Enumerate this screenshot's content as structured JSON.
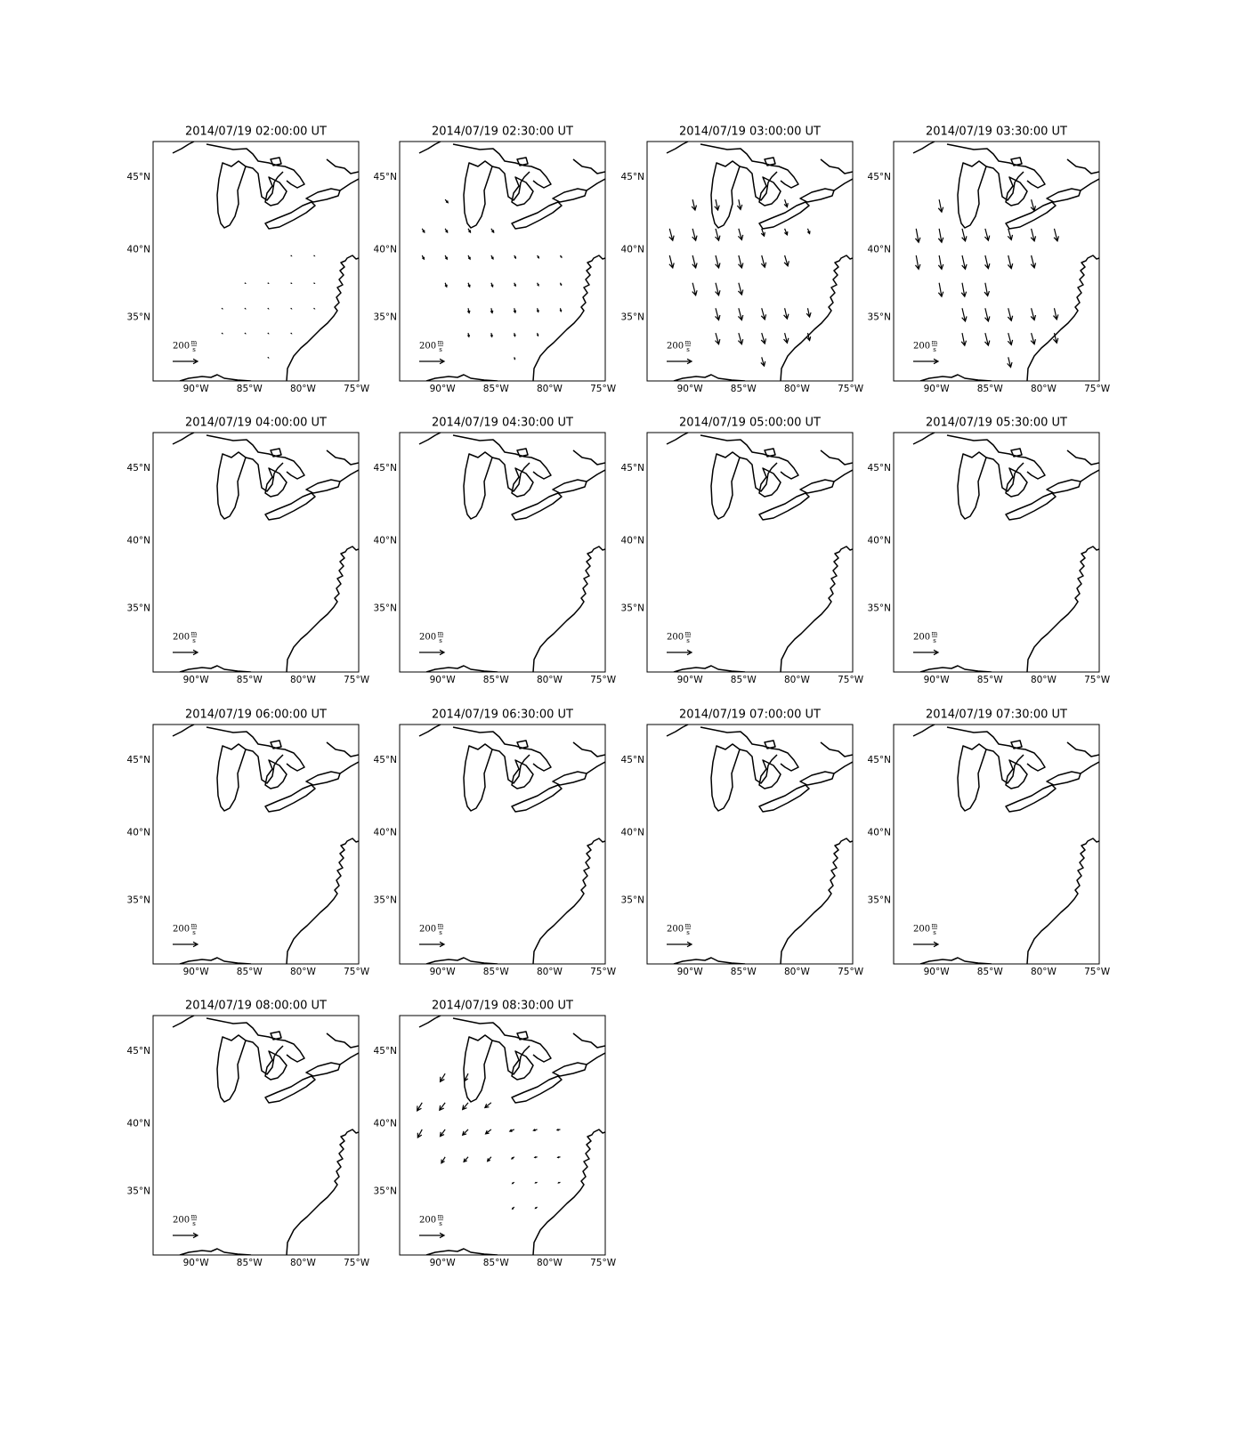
{
  "chart_data": [
    {
      "type": "quiver",
      "title": "2014/07/19 02:00:00 UT",
      "xlim": [
        -94,
        -74.8
      ],
      "ylim": [
        30,
        47.3
      ],
      "xticks": [
        {
          "value": -90,
          "label": "90°W"
        },
        {
          "value": -85,
          "label": "85°W"
        },
        {
          "value": -80,
          "label": "80°W"
        },
        {
          "value": -75,
          "label": "75°W"
        }
      ],
      "yticks": [
        {
          "value": 35,
          "label": "35°N"
        },
        {
          "value": 40,
          "label": "40°N"
        },
        {
          "value": 45,
          "label": "45°N"
        }
      ],
      "key": {
        "value": 200,
        "numerator": "m",
        "denominator": "s"
      },
      "x": [
        -81.15,
        -79.0,
        -85.45,
        -83.3,
        -81.15,
        -79.0,
        -87.6,
        -85.45,
        -83.3,
        -81.15,
        -79.0,
        -87.6,
        -85.45,
        -83.3,
        -81.15,
        -83.3
      ],
      "y": [
        39.6,
        39.6,
        37.6,
        37.6,
        37.6,
        37.6,
        35.7,
        35.7,
        35.7,
        35.7,
        35.7,
        33.8,
        33.8,
        33.8,
        33.8,
        31.9
      ],
      "u": [
        6,
        6,
        6,
        6,
        6,
        6,
        6,
        6,
        6,
        6,
        6,
        6,
        6,
        6,
        6,
        6
      ],
      "v": [
        -4,
        -4,
        -4,
        -4,
        -4,
        -4,
        -4,
        -4,
        -4,
        -4,
        -4,
        -4,
        -4,
        -4,
        -4,
        -4
      ]
    },
    {
      "type": "quiver",
      "title": "2014/07/19 02:30:00 UT",
      "xlim": [
        -94,
        -74.8
      ],
      "ylim": [
        30,
        47.3
      ],
      "xticks": [
        {
          "value": -90,
          "label": "90°W"
        },
        {
          "value": -85,
          "label": "85°W"
        },
        {
          "value": -80,
          "label": "80°W"
        },
        {
          "value": -75,
          "label": "75°W"
        }
      ],
      "yticks": [
        {
          "value": 35,
          "label": "35°N"
        },
        {
          "value": 40,
          "label": "40°N"
        },
        {
          "value": 45,
          "label": "45°N"
        }
      ],
      "key": {
        "value": 200,
        "numerator": "m",
        "denominator": "s"
      },
      "x": [
        -89.75,
        -91.9,
        -89.75,
        -87.6,
        -85.45,
        -91.9,
        -89.75,
        -87.6,
        -85.45,
        -83.3,
        -81.15,
        -79.0,
        -89.75,
        -87.6,
        -85.45,
        -83.3,
        -81.15,
        -79.0,
        -87.6,
        -85.45,
        -83.3,
        -81.15,
        -79.0,
        -87.6,
        -85.45,
        -83.3,
        -81.15,
        -83.3
      ],
      "y": [
        43.5,
        41.5,
        41.5,
        41.5,
        41.5,
        39.6,
        39.6,
        39.6,
        39.6,
        39.6,
        39.6,
        39.6,
        37.6,
        37.6,
        37.6,
        37.6,
        37.6,
        37.6,
        35.7,
        35.7,
        35.7,
        35.7,
        35.7,
        33.8,
        33.8,
        33.8,
        33.8,
        31.9
      ],
      "u": [
        22,
        18,
        18,
        18,
        20,
        15,
        15,
        15,
        15,
        12,
        12,
        10,
        12,
        12,
        12,
        10,
        10,
        8,
        8,
        8,
        8,
        8,
        6,
        6,
        6,
        6,
        6,
        5
      ],
      "v": [
        -25,
        -30,
        -30,
        -30,
        -30,
        -30,
        -30,
        -30,
        -28,
        -22,
        -20,
        -15,
        -32,
        -32,
        -30,
        -25,
        -22,
        -18,
        -38,
        -38,
        -35,
        -30,
        -25,
        -30,
        -30,
        -25,
        -22,
        -15
      ]
    },
    {
      "type": "quiver",
      "title": "2014/07/19 03:00:00 UT",
      "xlim": [
        -94,
        -74.8
      ],
      "ylim": [
        30,
        47.3
      ],
      "xticks": [
        {
          "value": -90,
          "label": "90°W"
        },
        {
          "value": -85,
          "label": "85°W"
        },
        {
          "value": -80,
          "label": "80°W"
        },
        {
          "value": -75,
          "label": "75°W"
        }
      ],
      "yticks": [
        {
          "value": 35,
          "label": "35°N"
        },
        {
          "value": 40,
          "label": "40°N"
        },
        {
          "value": 45,
          "label": "45°N"
        }
      ],
      "key": {
        "value": 200,
        "numerator": "m",
        "denominator": "s"
      },
      "x": [
        -89.75,
        -87.6,
        -85.45,
        -81.15,
        -91.9,
        -89.75,
        -87.6,
        -85.45,
        -83.3,
        -81.15,
        -79.0,
        -91.9,
        -89.75,
        -87.6,
        -85.45,
        -83.3,
        -81.15,
        -89.75,
        -87.6,
        -85.45,
        -87.6,
        -85.45,
        -83.3,
        -81.15,
        -79.0,
        -87.6,
        -85.45,
        -83.3,
        -81.15,
        -79.0,
        -83.3
      ],
      "y": [
        43.5,
        43.5,
        43.5,
        43.5,
        41.5,
        41.5,
        41.5,
        41.5,
        41.5,
        41.5,
        41.5,
        39.6,
        39.6,
        39.6,
        39.6,
        39.6,
        39.6,
        37.6,
        37.6,
        37.6,
        35.7,
        35.7,
        35.7,
        35.7,
        35.7,
        33.8,
        33.8,
        33.8,
        33.8,
        33.8,
        31.9
      ],
      "u": [
        20,
        18,
        15,
        20,
        25,
        25,
        25,
        25,
        20,
        20,
        15,
        25,
        25,
        25,
        25,
        25,
        25,
        25,
        25,
        25,
        25,
        25,
        25,
        20,
        15,
        25,
        25,
        25,
        20,
        15,
        20
      ],
      "v": [
        -85,
        -85,
        -80,
        -60,
        -95,
        -95,
        -95,
        -90,
        -60,
        -50,
        -40,
        -100,
        -100,
        -100,
        -100,
        -95,
        -85,
        -100,
        -100,
        -95,
        -95,
        -95,
        -90,
        -85,
        -70,
        -90,
        -90,
        -85,
        -80,
        -60,
        -70
      ]
    },
    {
      "type": "quiver",
      "title": "2014/07/19 03:30:00 UT",
      "xlim": [
        -94,
        -74.8
      ],
      "ylim": [
        30,
        47.3
      ],
      "xticks": [
        {
          "value": -90,
          "label": "90°W"
        },
        {
          "value": -85,
          "label": "85°W"
        },
        {
          "value": -80,
          "label": "80°W"
        },
        {
          "value": -75,
          "label": "75°W"
        }
      ],
      "yticks": [
        {
          "value": 35,
          "label": "35°N"
        },
        {
          "value": 40,
          "label": "40°N"
        },
        {
          "value": 45,
          "label": "45°N"
        }
      ],
      "key": {
        "value": 200,
        "numerator": "m",
        "denominator": "s"
      },
      "x": [
        -89.75,
        -81.15,
        -91.9,
        -89.75,
        -87.6,
        -85.45,
        -83.3,
        -81.15,
        -79.0,
        -91.9,
        -89.75,
        -87.6,
        -85.45,
        -83.3,
        -81.15,
        -89.75,
        -87.6,
        -85.45,
        -87.6,
        -85.45,
        -83.3,
        -81.15,
        -79.0,
        -87.6,
        -85.45,
        -83.3,
        -81.15,
        -79.0,
        -83.3
      ],
      "y": [
        43.5,
        43.5,
        41.5,
        41.5,
        41.5,
        41.5,
        41.5,
        41.5,
        41.5,
        39.6,
        39.6,
        39.6,
        39.6,
        39.6,
        39.6,
        37.6,
        37.6,
        37.6,
        35.7,
        35.7,
        35.7,
        35.7,
        35.7,
        33.8,
        33.8,
        33.8,
        33.8,
        33.8,
        31.9
      ],
      "u": [
        20,
        25,
        20,
        20,
        25,
        25,
        25,
        25,
        25,
        20,
        20,
        25,
        25,
        25,
        25,
        20,
        20,
        20,
        25,
        25,
        25,
        25,
        20,
        20,
        25,
        25,
        25,
        20,
        20
      ],
      "v": [
        -100,
        -90,
        -110,
        -110,
        -100,
        -95,
        -90,
        -100,
        -100,
        -110,
        -110,
        -110,
        -105,
        -105,
        -100,
        -110,
        -110,
        -105,
        -105,
        -105,
        -100,
        -95,
        -90,
        -100,
        -100,
        -95,
        -90,
        -80,
        -80
      ]
    },
    {
      "type": "quiver",
      "title": "2014/07/19 04:00:00 UT",
      "xlim": [
        -94,
        -74.8
      ],
      "ylim": [
        30,
        47.3
      ],
      "xticks": [
        {
          "value": -90,
          "label": "90°W"
        },
        {
          "value": -85,
          "label": "85°W"
        },
        {
          "value": -80,
          "label": "80°W"
        },
        {
          "value": -75,
          "label": "75°W"
        }
      ],
      "yticks": [
        {
          "value": 35,
          "label": "35°N"
        },
        {
          "value": 40,
          "label": "40°N"
        },
        {
          "value": 45,
          "label": "45°N"
        }
      ],
      "key": {
        "value": 200,
        "numerator": "m",
        "denominator": "s"
      }
    },
    {
      "type": "quiver",
      "title": "2014/07/19 04:30:00 UT",
      "xlim": [
        -94,
        -74.8
      ],
      "ylim": [
        30,
        47.3
      ],
      "xticks": [
        {
          "value": -90,
          "label": "90°W"
        },
        {
          "value": -85,
          "label": "85°W"
        },
        {
          "value": -80,
          "label": "80°W"
        },
        {
          "value": -75,
          "label": "75°W"
        }
      ],
      "yticks": [
        {
          "value": 35,
          "label": "35°N"
        },
        {
          "value": 40,
          "label": "40°N"
        },
        {
          "value": 45,
          "label": "45°N"
        }
      ],
      "key": {
        "value": 200,
        "numerator": "m",
        "denominator": "s"
      }
    },
    {
      "type": "quiver",
      "title": "2014/07/19 05:00:00 UT",
      "xlim": [
        -94,
        -74.8
      ],
      "ylim": [
        30,
        47.3
      ],
      "xticks": [
        {
          "value": -90,
          "label": "90°W"
        },
        {
          "value": -85,
          "label": "85°W"
        },
        {
          "value": -80,
          "label": "80°W"
        },
        {
          "value": -75,
          "label": "75°W"
        }
      ],
      "yticks": [
        {
          "value": 35,
          "label": "35°N"
        },
        {
          "value": 40,
          "label": "40°N"
        },
        {
          "value": 45,
          "label": "45°N"
        }
      ],
      "key": {
        "value": 200,
        "numerator": "m",
        "denominator": "s"
      }
    },
    {
      "type": "quiver",
      "title": "2014/07/19 05:30:00 UT",
      "xlim": [
        -94,
        -74.8
      ],
      "ylim": [
        30,
        47.3
      ],
      "xticks": [
        {
          "value": -90,
          "label": "90°W"
        },
        {
          "value": -85,
          "label": "85°W"
        },
        {
          "value": -80,
          "label": "80°W"
        },
        {
          "value": -75,
          "label": "75°W"
        }
      ],
      "yticks": [
        {
          "value": 35,
          "label": "35°N"
        },
        {
          "value": 40,
          "label": "40°N"
        },
        {
          "value": 45,
          "label": "45°N"
        }
      ],
      "key": {
        "value": 200,
        "numerator": "m",
        "denominator": "s"
      }
    },
    {
      "type": "quiver",
      "title": "2014/07/19 06:00:00 UT",
      "xlim": [
        -94,
        -74.8
      ],
      "ylim": [
        30,
        47.3
      ],
      "xticks": [
        {
          "value": -90,
          "label": "90°W"
        },
        {
          "value": -85,
          "label": "85°W"
        },
        {
          "value": -80,
          "label": "80°W"
        },
        {
          "value": -75,
          "label": "75°W"
        }
      ],
      "yticks": [
        {
          "value": 35,
          "label": "35°N"
        },
        {
          "value": 40,
          "label": "40°N"
        },
        {
          "value": 45,
          "label": "45°N"
        }
      ],
      "key": {
        "value": 200,
        "numerator": "m",
        "denominator": "s"
      }
    },
    {
      "type": "quiver",
      "title": "2014/07/19 06:30:00 UT",
      "xlim": [
        -94,
        -74.8
      ],
      "ylim": [
        30,
        47.3
      ],
      "xticks": [
        {
          "value": -90,
          "label": "90°W"
        },
        {
          "value": -85,
          "label": "85°W"
        },
        {
          "value": -80,
          "label": "80°W"
        },
        {
          "value": -75,
          "label": "75°W"
        }
      ],
      "yticks": [
        {
          "value": 35,
          "label": "35°N"
        },
        {
          "value": 40,
          "label": "40°N"
        },
        {
          "value": 45,
          "label": "45°N"
        }
      ],
      "key": {
        "value": 200,
        "numerator": "m",
        "denominator": "s"
      }
    },
    {
      "type": "quiver",
      "title": "2014/07/19 07:00:00 UT",
      "xlim": [
        -94,
        -74.8
      ],
      "ylim": [
        30,
        47.3
      ],
      "xticks": [
        {
          "value": -90,
          "label": "90°W"
        },
        {
          "value": -85,
          "label": "85°W"
        },
        {
          "value": -80,
          "label": "80°W"
        },
        {
          "value": -75,
          "label": "75°W"
        }
      ],
      "yticks": [
        {
          "value": 35,
          "label": "35°N"
        },
        {
          "value": 40,
          "label": "40°N"
        },
        {
          "value": 45,
          "label": "45°N"
        }
      ],
      "key": {
        "value": 200,
        "numerator": "m",
        "denominator": "s"
      }
    },
    {
      "type": "quiver",
      "title": "2014/07/19 07:30:00 UT",
      "xlim": [
        -94,
        -74.8
      ],
      "ylim": [
        30,
        47.3
      ],
      "xticks": [
        {
          "value": -90,
          "label": "90°W"
        },
        {
          "value": -85,
          "label": "85°W"
        },
        {
          "value": -80,
          "label": "80°W"
        },
        {
          "value": -75,
          "label": "75°W"
        }
      ],
      "yticks": [
        {
          "value": 35,
          "label": "35°N"
        },
        {
          "value": 40,
          "label": "40°N"
        },
        {
          "value": 45,
          "label": "45°N"
        }
      ],
      "key": {
        "value": 200,
        "numerator": "m",
        "denominator": "s"
      }
    },
    {
      "type": "quiver",
      "title": "2014/07/19 08:00:00 UT",
      "xlim": [
        -94,
        -74.8
      ],
      "ylim": [
        30,
        47.3
      ],
      "xticks": [
        {
          "value": -90,
          "label": "90°W"
        },
        {
          "value": -85,
          "label": "85°W"
        },
        {
          "value": -80,
          "label": "80°W"
        },
        {
          "value": -75,
          "label": "75°W"
        }
      ],
      "yticks": [
        {
          "value": 35,
          "label": "35°N"
        },
        {
          "value": 40,
          "label": "40°N"
        },
        {
          "value": 45,
          "label": "45°N"
        }
      ],
      "key": {
        "value": 200,
        "numerator": "m",
        "denominator": "s"
      }
    },
    {
      "type": "quiver",
      "title": "2014/07/19 08:30:00 UT",
      "xlim": [
        -94,
        -74.8
      ],
      "ylim": [
        30,
        47.3
      ],
      "xticks": [
        {
          "value": -90,
          "label": "90°W"
        },
        {
          "value": -85,
          "label": "85°W"
        },
        {
          "value": -80,
          "label": "80°W"
        },
        {
          "value": -75,
          "label": "75°W"
        }
      ],
      "yticks": [
        {
          "value": 35,
          "label": "35°N"
        },
        {
          "value": 40,
          "label": "40°N"
        },
        {
          "value": 45,
          "label": "45°N"
        }
      ],
      "key": {
        "value": 200,
        "numerator": "m",
        "denominator": "s"
      },
      "x": [
        -89.75,
        -87.6,
        -91.9,
        -89.75,
        -87.6,
        -85.45,
        -91.9,
        -89.75,
        -87.6,
        -85.45,
        -83.3,
        -81.15,
        -79.0,
        -89.75,
        -87.6,
        -85.45,
        -83.3,
        -81.15,
        -79.0,
        -83.3,
        -81.15,
        -79.0,
        -83.3,
        -81.15
      ],
      "y": [
        43.5,
        43.5,
        41.5,
        41.5,
        41.5,
        41.5,
        39.6,
        39.6,
        39.6,
        39.6,
        39.6,
        39.6,
        39.6,
        37.6,
        37.6,
        37.6,
        37.6,
        37.6,
        37.6,
        35.7,
        35.7,
        35.7,
        33.8,
        33.8
      ],
      "u": [
        -40,
        -30,
        -40,
        -45,
        -45,
        -50,
        -35,
        -40,
        -45,
        -45,
        -35,
        -30,
        -25,
        -30,
        -35,
        -30,
        -20,
        -20,
        -20,
        -15,
        -15,
        -15,
        -15,
        -15
      ],
      "v": [
        -65,
        -60,
        -65,
        -60,
        -55,
        -40,
        -65,
        -55,
        -45,
        -35,
        -15,
        -8,
        -5,
        -50,
        -40,
        -35,
        -15,
        -5,
        -5,
        -10,
        -5,
        -5,
        -15,
        -10
      ]
    }
  ]
}
